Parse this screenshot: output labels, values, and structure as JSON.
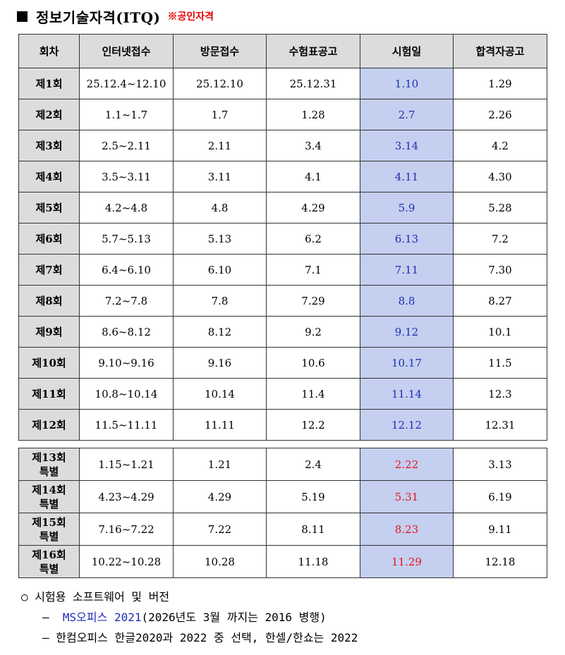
{
  "header": {
    "title": "정보기술자격(ITQ)",
    "badge": "※공인자격"
  },
  "table": {
    "columns": [
      "회차",
      "인터넷접수",
      "방문접수",
      "수험표공고",
      "시험일",
      "합격자공고"
    ],
    "regular_rows": [
      [
        "제1회",
        "25.12.4~12.10",
        "25.12.10",
        "25.12.31",
        "1.10",
        "1.29"
      ],
      [
        "제2회",
        "1.1~1.7",
        "1.7",
        "1.28",
        "2.7",
        "2.26"
      ],
      [
        "제3회",
        "2.5~2.11",
        "2.11",
        "3.4",
        "3.14",
        "4.2"
      ],
      [
        "제4회",
        "3.5~3.11",
        "3.11",
        "4.1",
        "4.11",
        "4.30"
      ],
      [
        "제5회",
        "4.2~4.8",
        "4.8",
        "4.29",
        "5.9",
        "5.28"
      ],
      [
        "제6회",
        "5.7~5.13",
        "5.13",
        "6.2",
        "6.13",
        "7.2"
      ],
      [
        "제7회",
        "6.4~6.10",
        "6.10",
        "7.1",
        "7.11",
        "7.30"
      ],
      [
        "제8회",
        "7.2~7.8",
        "7.8",
        "7.29",
        "8.8",
        "8.27"
      ],
      [
        "제9회",
        "8.6~8.12",
        "8.12",
        "9.2",
        "9.12",
        "10.1"
      ],
      [
        "제10회",
        "9.10~9.16",
        "9.16",
        "10.6",
        "10.17",
        "11.5"
      ],
      [
        "제11회",
        "10.8~10.14",
        "10.14",
        "11.4",
        "11.14",
        "12.3"
      ],
      [
        "제12회",
        "11.5~11.11",
        "11.11",
        "12.2",
        "12.12",
        "12.31"
      ]
    ],
    "special_rows": [
      [
        "제13회",
        "특별",
        "1.15~1.21",
        "1.21",
        "2.4",
        "2.22",
        "3.13"
      ],
      [
        "제14회",
        "특별",
        "4.23~4.29",
        "4.29",
        "5.19",
        "5.31",
        "6.19"
      ],
      [
        "제15회",
        "특별",
        "7.16~7.22",
        "7.22",
        "8.11",
        "8.23",
        "9.11"
      ],
      [
        "제16회",
        "특별",
        "10.22~10.28",
        "10.28",
        "11.18",
        "11.29",
        "12.18"
      ]
    ],
    "colors": {
      "header_bg": "#dcdcdc",
      "exam_bg": "#c5cfef",
      "regular_exam_text": "#1c2fb5",
      "special_exam_text": "#e8141e"
    }
  },
  "notes": {
    "line1": "○  시험용 소프트웨어 및 버전",
    "line2_prefix": "–",
    "line2_ms": "MS오피스 2021",
    "line2_rest": "(2026년도 3월 까지는 2016 병행)",
    "line3": "–  한컴오피스 한글2020과 2022 중 선택, 한셀/한쇼는 2022"
  }
}
